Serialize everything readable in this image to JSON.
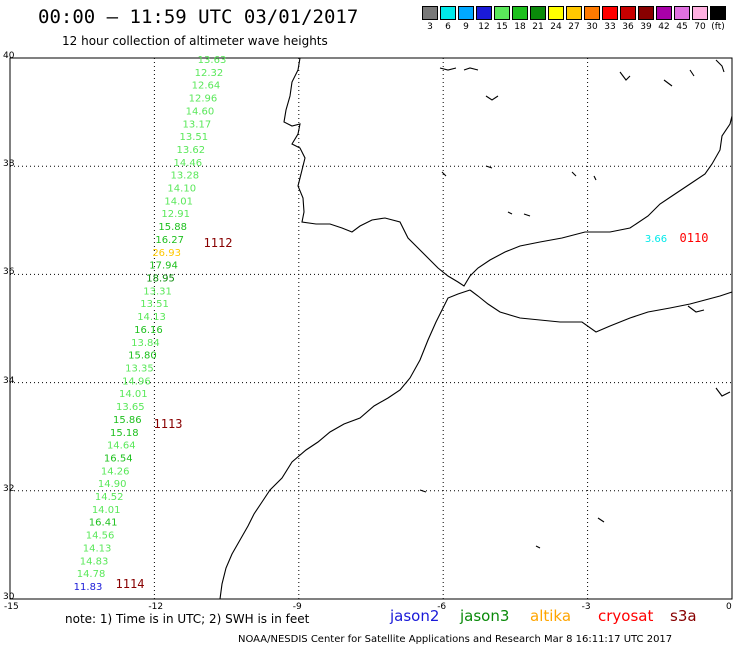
{
  "header": {
    "title": "00:00 – 11:59 UTC 03/01/2017",
    "subtitle": "12 hour collection of altimeter wave heights"
  },
  "scale": {
    "unit_label": "(ft)",
    "items": [
      {
        "label": "3",
        "color": "#787878"
      },
      {
        "label": "6",
        "color": "#00eaea"
      },
      {
        "label": "9",
        "color": "#00a8ff"
      },
      {
        "label": "12",
        "color": "#1a1ad8"
      },
      {
        "label": "15",
        "color": "#5ae85a"
      },
      {
        "label": "18",
        "color": "#1ec01e"
      },
      {
        "label": "21",
        "color": "#0a8a0a"
      },
      {
        "label": "24",
        "color": "#ffff00"
      },
      {
        "label": "27",
        "color": "#ffc800"
      },
      {
        "label": "30",
        "color": "#ff7a00"
      },
      {
        "label": "33",
        "color": "#ff0000"
      },
      {
        "label": "36",
        "color": "#c80000"
      },
      {
        "label": "39",
        "color": "#880000"
      },
      {
        "label": "42",
        "color": "#a800a8"
      },
      {
        "label": "45",
        "color": "#e070e0"
      },
      {
        "label": "70",
        "color": "#ffb0e0"
      },
      {
        "label": "",
        "color": "#000000"
      }
    ]
  },
  "axes": {
    "lat_ticks": [
      "40",
      "38",
      "36",
      "34",
      "32",
      "30"
    ],
    "lon_ticks": [
      "-15",
      "-12",
      "-9",
      "-6",
      "-3",
      "0"
    ],
    "lat_range": [
      30,
      40
    ],
    "lon_range": [
      -15,
      0
    ]
  },
  "track_values": [
    {
      "v": "13.63",
      "c": "#5ae85a"
    },
    {
      "v": "12.32",
      "c": "#5ae85a"
    },
    {
      "v": "12.64",
      "c": "#5ae85a"
    },
    {
      "v": "12.96",
      "c": "#5ae85a"
    },
    {
      "v": "14.60",
      "c": "#5ae85a"
    },
    {
      "v": "13.17",
      "c": "#5ae85a"
    },
    {
      "v": "13.51",
      "c": "#5ae85a"
    },
    {
      "v": "13.62",
      "c": "#5ae85a"
    },
    {
      "v": "14.46",
      "c": "#5ae85a"
    },
    {
      "v": "13.28",
      "c": "#5ae85a"
    },
    {
      "v": "14.10",
      "c": "#5ae85a"
    },
    {
      "v": "14.01",
      "c": "#5ae85a"
    },
    {
      "v": "12.91",
      "c": "#5ae85a"
    },
    {
      "v": "15.88",
      "c": "#1ec01e"
    },
    {
      "v": "16.27",
      "c": "#1ec01e"
    },
    {
      "v": "26.93",
      "c": "#ffc800"
    },
    {
      "v": "17.94",
      "c": "#1ec01e"
    },
    {
      "v": "18.95",
      "c": "#0a8a0a"
    },
    {
      "v": "13.31",
      "c": "#5ae85a"
    },
    {
      "v": "13.51",
      "c": "#5ae85a"
    },
    {
      "v": "14.13",
      "c": "#5ae85a"
    },
    {
      "v": "16.16",
      "c": "#1ec01e"
    },
    {
      "v": "13.84",
      "c": "#5ae85a"
    },
    {
      "v": "15.80",
      "c": "#1ec01e"
    },
    {
      "v": "13.35",
      "c": "#5ae85a"
    },
    {
      "v": "14.96",
      "c": "#5ae85a"
    },
    {
      "v": "14.01",
      "c": "#5ae85a"
    },
    {
      "v": "13.65",
      "c": "#5ae85a"
    },
    {
      "v": "15.86",
      "c": "#1ec01e"
    },
    {
      "v": "15.18",
      "c": "#1ec01e"
    },
    {
      "v": "14.64",
      "c": "#5ae85a"
    },
    {
      "v": "16.54",
      "c": "#1ec01e"
    },
    {
      "v": "14.26",
      "c": "#5ae85a"
    },
    {
      "v": "14.90",
      "c": "#5ae85a"
    },
    {
      "v": "14.52",
      "c": "#5ae85a"
    },
    {
      "v": "14.01",
      "c": "#5ae85a"
    },
    {
      "v": "16.41",
      "c": "#1ec01e"
    },
    {
      "v": "14.56",
      "c": "#5ae85a"
    },
    {
      "v": "14.13",
      "c": "#5ae85a"
    },
    {
      "v": "14.83",
      "c": "#5ae85a"
    },
    {
      "v": "14.78",
      "c": "#5ae85a"
    },
    {
      "v": "11.83",
      "c": "#1a1ad8"
    }
  ],
  "time_labels": [
    {
      "text": "1112",
      "color": "#880000"
    },
    {
      "text": "1113",
      "color": "#880000"
    },
    {
      "text": "1114",
      "color": "#880000"
    },
    {
      "text": "0110",
      "color": "#ff0000"
    }
  ],
  "east_value": {
    "v": "3.66",
    "c": "#00eaea"
  },
  "footer": {
    "note": "note:  1) Time is in UTC;  2) SWH is in feet",
    "satellites": [
      {
        "name": "jason2",
        "color": "#1a1ad8"
      },
      {
        "name": "jason3",
        "color": "#0a8a0a"
      },
      {
        "name": "altika",
        "color": "#ffa500"
      },
      {
        "name": "cryosat",
        "color": "#ff0000"
      },
      {
        "name": "s3a",
        "color": "#880000"
      }
    ],
    "credit": "NOAA/NESDIS Center for Satellite Applications and Research   Mar  8 16:11:17 UTC 2017"
  }
}
